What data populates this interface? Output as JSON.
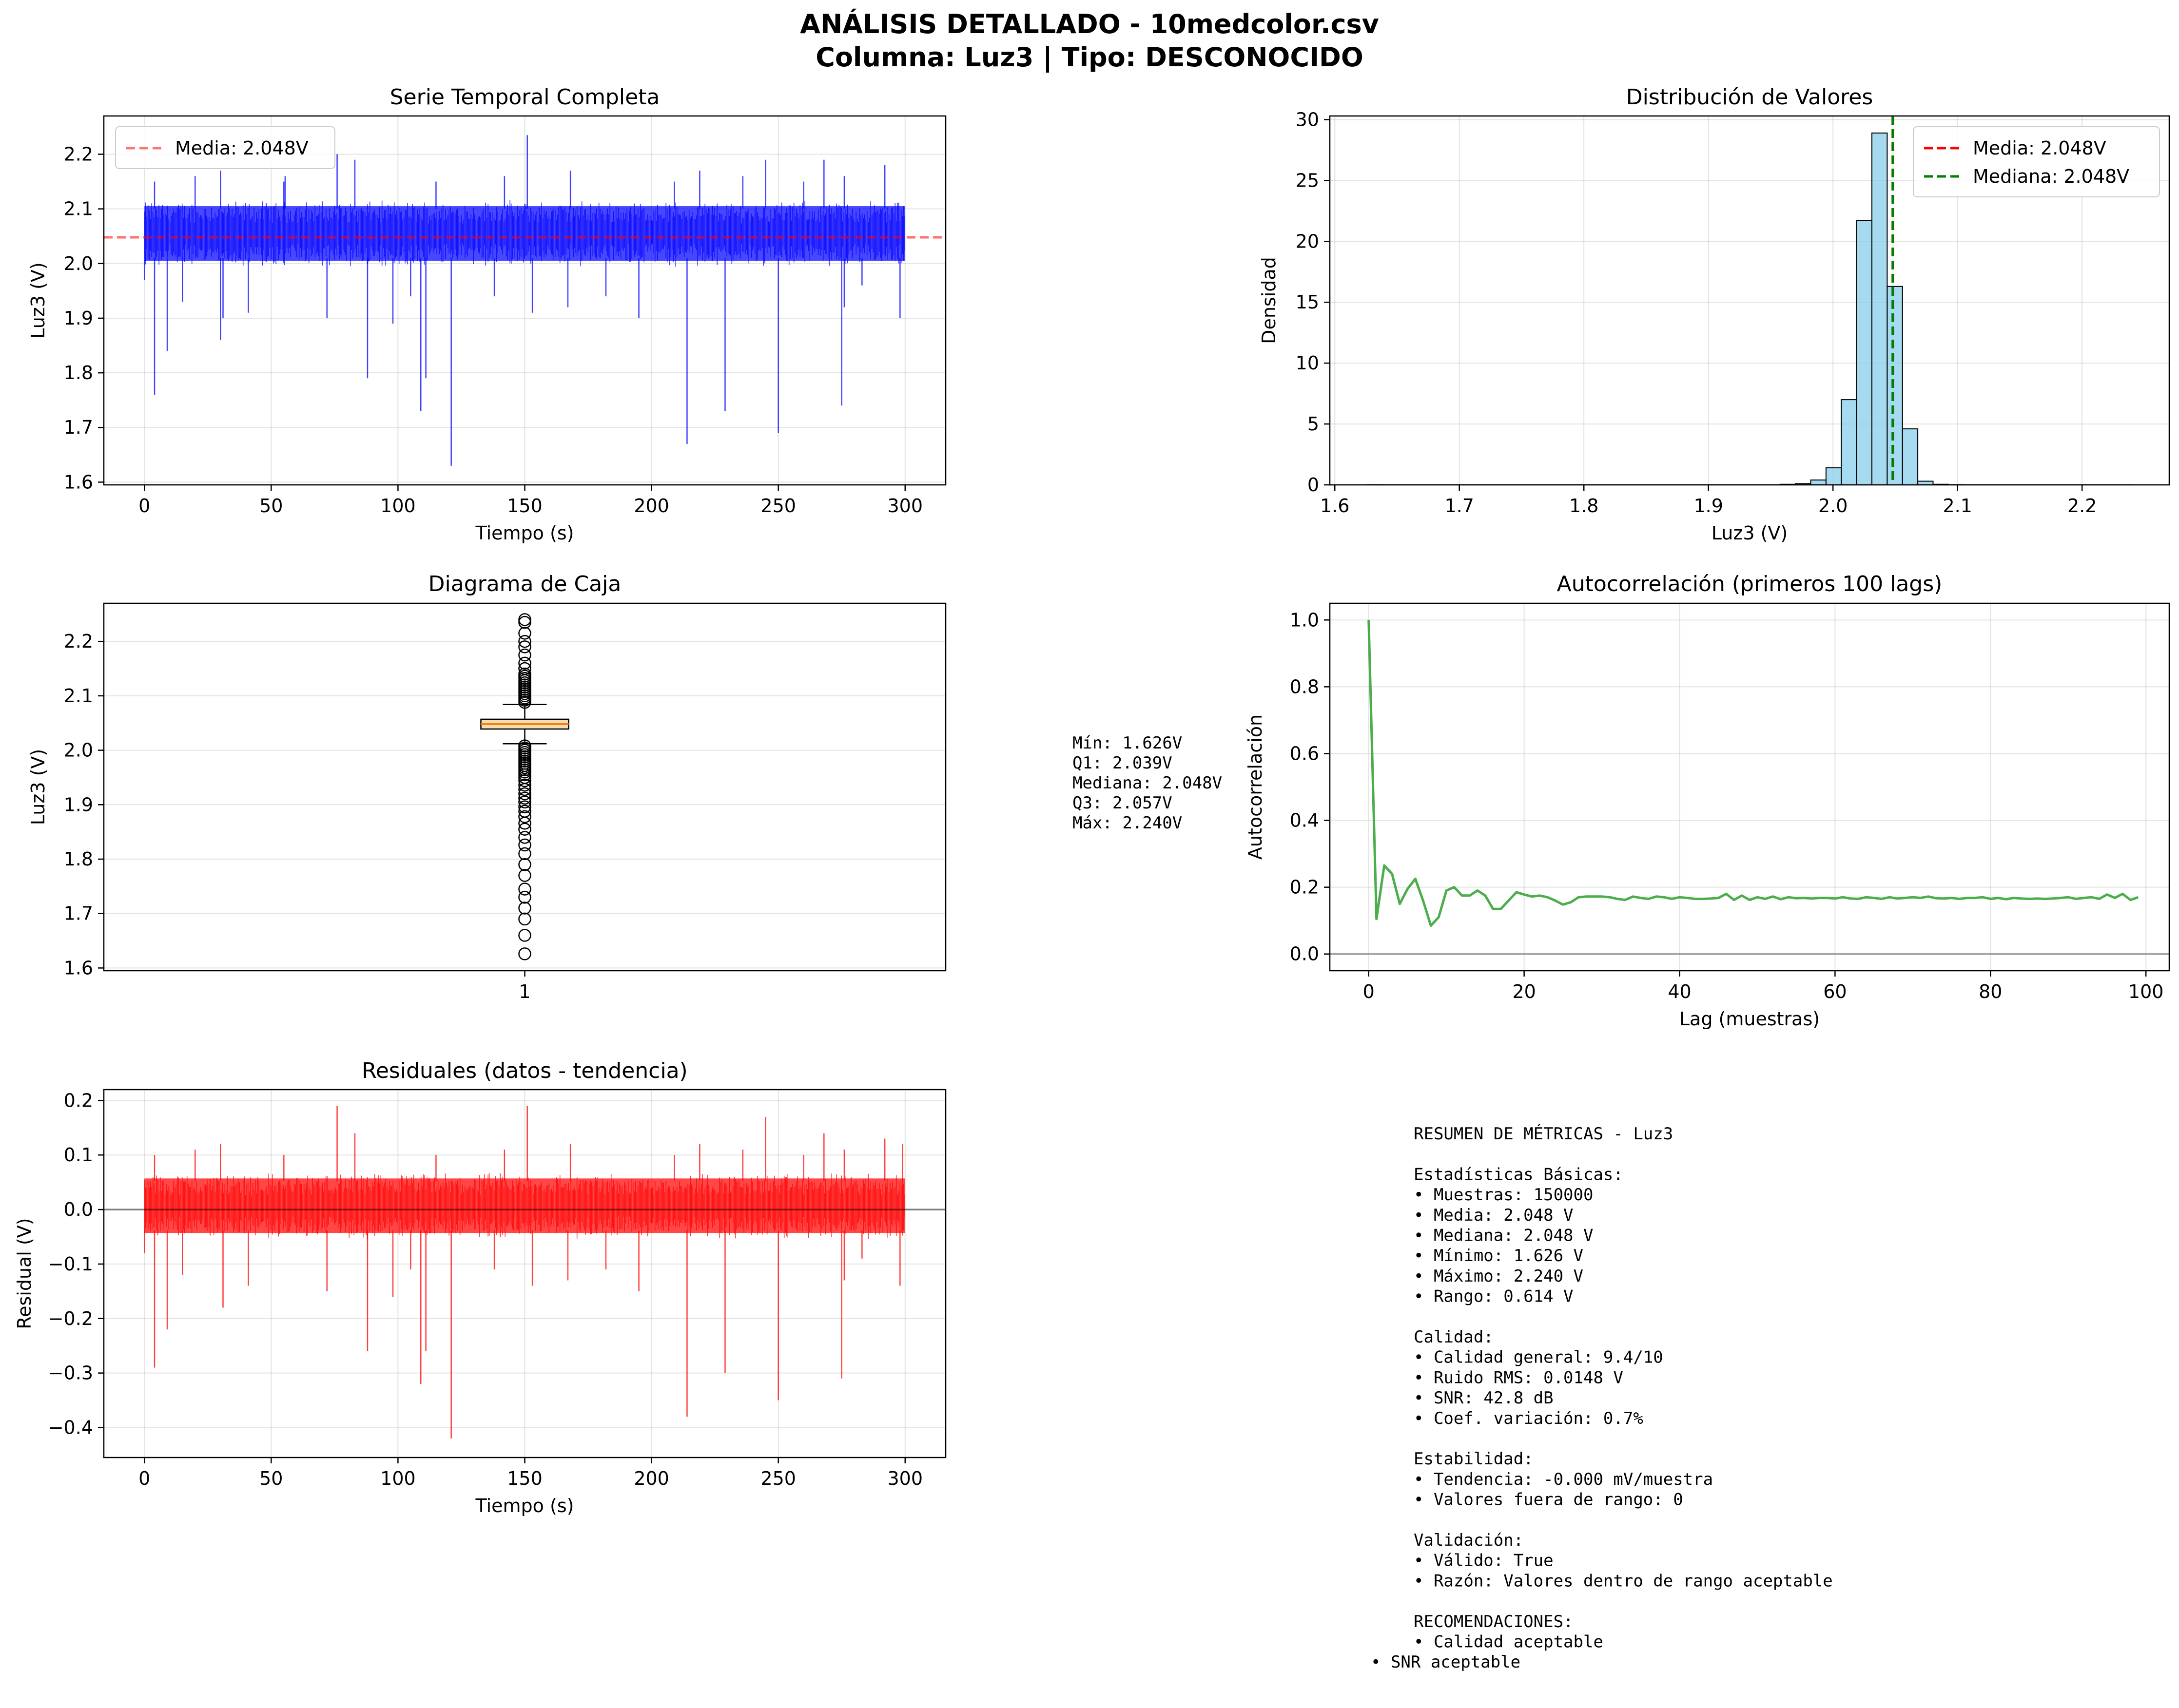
{
  "suptitle": {
    "line1": "ANÁLISIS DETALLADO - 10medcolor.csv",
    "line2": "Columna: Luz3 | Tipo: DESCONOCIDO"
  },
  "colors": {
    "series": "#0000ff",
    "mean_line": "#ff0000",
    "median_line": "#008000",
    "hist_fill": "#87ceeb",
    "box_median": "#ff7f0e",
    "box_fill": "#f5deb3",
    "acf_line": "#2ca02c",
    "residual": "#ff0000",
    "zero_line": "#808080"
  },
  "chart_data": [
    {
      "id": "timeseries",
      "type": "line",
      "title": "Serie Temporal Completa",
      "xlabel": "Tiempo (s)",
      "ylabel": "Luz3 (V)",
      "xlim": [
        -16,
        316
      ],
      "ylim": [
        1.595,
        2.27
      ],
      "xticks": [
        0,
        50,
        100,
        150,
        200,
        250,
        300
      ],
      "yticks": [
        1.6,
        1.7,
        1.8,
        1.9,
        2.0,
        2.1,
        2.2
      ],
      "ytick_labels": [
        "1.6",
        "1.7",
        "1.8",
        "1.9",
        "2.0",
        "2.1",
        "2.2"
      ],
      "band": {
        "x": [
          0,
          300
        ],
        "low": 2.005,
        "high": 2.105
      },
      "spikes_up": [
        [
          4,
          2.15
        ],
        [
          20,
          2.16
        ],
        [
          30,
          2.17
        ],
        [
          55,
          2.15
        ],
        [
          55.5,
          2.16
        ],
        [
          76,
          2.2
        ],
        [
          83,
          2.19
        ],
        [
          115,
          2.15
        ],
        [
          142,
          2.16
        ],
        [
          151,
          2.235
        ],
        [
          168,
          2.17
        ],
        [
          209,
          2.15
        ],
        [
          219,
          2.17
        ],
        [
          236,
          2.16
        ],
        [
          245,
          2.19
        ],
        [
          260,
          2.15
        ],
        [
          268,
          2.19
        ],
        [
          276,
          2.16
        ],
        [
          292,
          2.18
        ]
      ],
      "spikes_down": [
        [
          0,
          1.97
        ],
        [
          4,
          1.76
        ],
        [
          9,
          1.84
        ],
        [
          15,
          1.93
        ],
        [
          31,
          1.9
        ],
        [
          30,
          1.86
        ],
        [
          41,
          1.91
        ],
        [
          72,
          1.9
        ],
        [
          88,
          1.79
        ],
        [
          98,
          1.89
        ],
        [
          105,
          1.94
        ],
        [
          109,
          1.73
        ],
        [
          111,
          1.79
        ],
        [
          121,
          1.63
        ],
        [
          138,
          1.94
        ],
        [
          153,
          1.91
        ],
        [
          167,
          1.92
        ],
        [
          182,
          1.94
        ],
        [
          195,
          1.9
        ],
        [
          214,
          1.67
        ],
        [
          229,
          1.73
        ],
        [
          250,
          1.69
        ],
        [
          275,
          1.74
        ],
        [
          276,
          1.92
        ],
        [
          283,
          1.96
        ],
        [
          298,
          1.9
        ]
      ],
      "mean": 2.048,
      "legend": [
        "Media: 2.048V"
      ],
      "legend_loc": "upper left"
    },
    {
      "id": "histogram",
      "type": "bar",
      "title": "Distribución de Valores",
      "xlabel": "Luz3 (V)",
      "ylabel": "Densidad",
      "xlim": [
        1.596,
        2.27
      ],
      "ylim": [
        0,
        30.3
      ],
      "xticks": [
        1.6,
        1.7,
        1.8,
        1.9,
        2.0,
        2.1,
        2.2
      ],
      "xtick_labels": [
        "1.6",
        "1.7",
        "1.8",
        "1.9",
        "2.0",
        "2.1",
        "2.2"
      ],
      "yticks": [
        0,
        5,
        10,
        15,
        20,
        25,
        30
      ],
      "bin_start": 1.626,
      "bin_width": 0.01228,
      "bin_values": [
        0.02,
        0.01,
        0.01,
        0.01,
        0.01,
        0.01,
        0.01,
        0.01,
        0.01,
        0.01,
        0.01,
        0.01,
        0.01,
        0.01,
        0.01,
        0.01,
        0.01,
        0.01,
        0.01,
        0.01,
        0.01,
        0.01,
        0.01,
        0.01,
        0.01,
        0.01,
        0.01,
        0.05,
        0.1,
        0.4,
        1.4,
        7.0,
        21.7,
        28.9,
        16.3,
        4.6,
        0.3,
        0.05,
        0.02,
        0.01,
        0.01,
        0.01,
        0.01,
        0.01,
        0.01,
        0.01,
        0.01,
        0.01,
        0.01,
        0.01
      ],
      "mean": 2.048,
      "median": 2.048,
      "legend": [
        "Media: 2.048V",
        "Mediana: 2.048V"
      ],
      "legend_loc": "upper right"
    },
    {
      "id": "boxplot",
      "type": "box",
      "title": "Diagrama de Caja",
      "ylabel": "Luz3 (V)",
      "ylim": [
        1.595,
        2.27
      ],
      "yticks": [
        1.6,
        1.7,
        1.8,
        1.9,
        2.0,
        2.1,
        2.2
      ],
      "ytick_labels": [
        "1.6",
        "1.7",
        "1.8",
        "1.9",
        "2.0",
        "2.1",
        "2.2"
      ],
      "xtick_label": "1",
      "q1": 2.039,
      "median": 2.048,
      "q3": 2.057,
      "whisker_low": 2.012,
      "whisker_high": 2.084,
      "outliers_high": [
        2.088,
        2.092,
        2.096,
        2.1,
        2.104,
        2.108,
        2.112,
        2.116,
        2.12,
        2.124,
        2.128,
        2.132,
        2.136,
        2.14,
        2.15,
        2.16,
        2.175,
        2.19,
        2.2,
        2.215,
        2.235,
        2.24
      ],
      "outliers_low": [
        2.008,
        2.004,
        2.0,
        1.996,
        1.992,
        1.988,
        1.984,
        1.98,
        1.976,
        1.972,
        1.968,
        1.964,
        1.96,
        1.955,
        1.95,
        1.944,
        1.936,
        1.928,
        1.92,
        1.912,
        1.905,
        1.896,
        1.888,
        1.878,
        1.866,
        1.855,
        1.84,
        1.826,
        1.81,
        1.79,
        1.77,
        1.745,
        1.73,
        1.71,
        1.69,
        1.66,
        1.626
      ],
      "stats_text": [
        "Mín: 1.626V",
        "Q1: 2.039V",
        "Mediana: 2.048V",
        "Q3: 2.057V",
        "Máx: 2.240V"
      ]
    },
    {
      "id": "autocorrelation",
      "type": "line",
      "title": "Autocorrelación (primeros 100 lags)",
      "xlabel": "Lag (muestras)",
      "ylabel": "Autocorrelación",
      "xlim": [
        -5,
        103
      ],
      "ylim": [
        -0.05,
        1.05
      ],
      "xticks": [
        0,
        20,
        40,
        60,
        80,
        100
      ],
      "yticks": [
        0.0,
        0.2,
        0.4,
        0.6,
        0.8,
        1.0
      ],
      "ytick_labels": [
        "0.0",
        "0.2",
        "0.4",
        "0.6",
        "0.8",
        "1.0"
      ],
      "x": [
        0,
        1,
        2,
        3,
        4,
        5,
        6,
        7,
        8,
        9,
        10,
        11,
        12,
        13,
        14,
        15,
        16,
        17,
        18,
        19,
        20,
        21,
        22,
        23,
        24,
        25,
        26,
        27,
        28,
        29,
        30,
        31,
        32,
        33,
        34,
        35,
        36,
        37,
        38,
        39,
        40,
        41,
        42,
        43,
        44,
        45,
        46,
        47,
        48,
        49,
        50,
        51,
        52,
        53,
        54,
        55,
        56,
        57,
        58,
        59,
        60,
        61,
        62,
        63,
        64,
        65,
        66,
        67,
        68,
        69,
        70,
        71,
        72,
        73,
        74,
        75,
        76,
        77,
        78,
        79,
        80,
        81,
        82,
        83,
        84,
        85,
        86,
        87,
        88,
        89,
        90,
        91,
        92,
        93,
        94,
        95,
        96,
        97,
        98,
        99
      ],
      "y": [
        1.0,
        0.105,
        0.265,
        0.24,
        0.15,
        0.195,
        0.225,
        0.16,
        0.085,
        0.11,
        0.19,
        0.2,
        0.175,
        0.175,
        0.19,
        0.175,
        0.135,
        0.135,
        0.16,
        0.185,
        0.178,
        0.172,
        0.175,
        0.17,
        0.16,
        0.148,
        0.155,
        0.17,
        0.172,
        0.172,
        0.172,
        0.17,
        0.165,
        0.162,
        0.172,
        0.168,
        0.165,
        0.172,
        0.17,
        0.165,
        0.17,
        0.168,
        0.165,
        0.165,
        0.166,
        0.168,
        0.18,
        0.162,
        0.175,
        0.162,
        0.17,
        0.165,
        0.172,
        0.164,
        0.17,
        0.167,
        0.168,
        0.166,
        0.168,
        0.168,
        0.166,
        0.17,
        0.166,
        0.165,
        0.17,
        0.168,
        0.165,
        0.17,
        0.166,
        0.168,
        0.17,
        0.168,
        0.172,
        0.167,
        0.166,
        0.168,
        0.165,
        0.168,
        0.168,
        0.17,
        0.165,
        0.168,
        0.164,
        0.168,
        0.166,
        0.165,
        0.166,
        0.165,
        0.166,
        0.168,
        0.17,
        0.165,
        0.168,
        0.17,
        0.165,
        0.178,
        0.168,
        0.18,
        0.162,
        0.17
      ],
      "zero_line": 0.0
    },
    {
      "id": "residuals",
      "type": "line",
      "title": "Residuales (datos - tendencia)",
      "xlabel": "Tiempo (s)",
      "ylabel": "Residual (V)",
      "xlim": [
        -16,
        316
      ],
      "ylim": [
        -0.455,
        0.22
      ],
      "xticks": [
        0,
        50,
        100,
        150,
        200,
        250,
        300
      ],
      "yticks": [
        -0.4,
        -0.3,
        -0.2,
        -0.1,
        0.0,
        0.1,
        0.2
      ],
      "ytick_labels": [
        "−0.4",
        "−0.3",
        "−0.2",
        "−0.1",
        "0.0",
        "0.1",
        "0.2"
      ],
      "band": {
        "x": [
          0,
          300
        ],
        "low": -0.043,
        "high": 0.057
      },
      "spikes_up": [
        [
          4,
          0.1
        ],
        [
          20,
          0.11
        ],
        [
          30,
          0.12
        ],
        [
          55,
          0.1
        ],
        [
          76,
          0.19
        ],
        [
          83,
          0.14
        ],
        [
          115,
          0.1
        ],
        [
          142,
          0.11
        ],
        [
          151,
          0.19
        ],
        [
          168,
          0.12
        ],
        [
          209,
          0.1
        ],
        [
          219,
          0.12
        ],
        [
          236,
          0.11
        ],
        [
          245,
          0.17
        ],
        [
          260,
          0.1
        ],
        [
          268,
          0.14
        ],
        [
          276,
          0.11
        ],
        [
          292,
          0.13
        ],
        [
          299,
          0.12
        ]
      ],
      "spikes_down": [
        [
          0,
          -0.08
        ],
        [
          4,
          -0.29
        ],
        [
          9,
          -0.22
        ],
        [
          15,
          -0.12
        ],
        [
          31,
          -0.18
        ],
        [
          41,
          -0.14
        ],
        [
          72,
          -0.15
        ],
        [
          88,
          -0.26
        ],
        [
          98,
          -0.16
        ],
        [
          105,
          -0.11
        ],
        [
          109,
          -0.32
        ],
        [
          111,
          -0.26
        ],
        [
          121,
          -0.42
        ],
        [
          138,
          -0.11
        ],
        [
          153,
          -0.14
        ],
        [
          167,
          -0.13
        ],
        [
          182,
          -0.11
        ],
        [
          195,
          -0.15
        ],
        [
          214,
          -0.38
        ],
        [
          229,
          -0.3
        ],
        [
          250,
          -0.35
        ],
        [
          275,
          -0.31
        ],
        [
          276,
          -0.13
        ],
        [
          283,
          -0.09
        ],
        [
          298,
          -0.14
        ]
      ],
      "zero_line": 0.0
    }
  ],
  "summary": {
    "lines": [
      "RESUMEN DE MÉTRICAS - Luz3",
      "",
      "Estadísticas Básicas:",
      "• Muestras: 150000",
      "• Media: 2.048 V",
      "• Mediana: 2.048 V",
      "• Mínimo: 1.626 V",
      "• Máximo: 2.240 V",
      "• Rango: 0.614 V",
      "",
      "Calidad:",
      "• Calidad general: 9.4/10",
      "• Ruido RMS: 0.0148 V",
      "• SNR: 42.8 dB",
      "• Coef. variación: 0.7%",
      "",
      "Estabilidad:",
      "• Tendencia: -0.000 mV/muestra",
      "• Valores fuera de rango: 0",
      "",
      "Validación:",
      "• Válido: True",
      "• Razón: Valores dentro de rango aceptable",
      "",
      "RECOMENDACIONES:",
      "• Calidad aceptable"
    ],
    "last_line": "• SNR aceptable"
  }
}
